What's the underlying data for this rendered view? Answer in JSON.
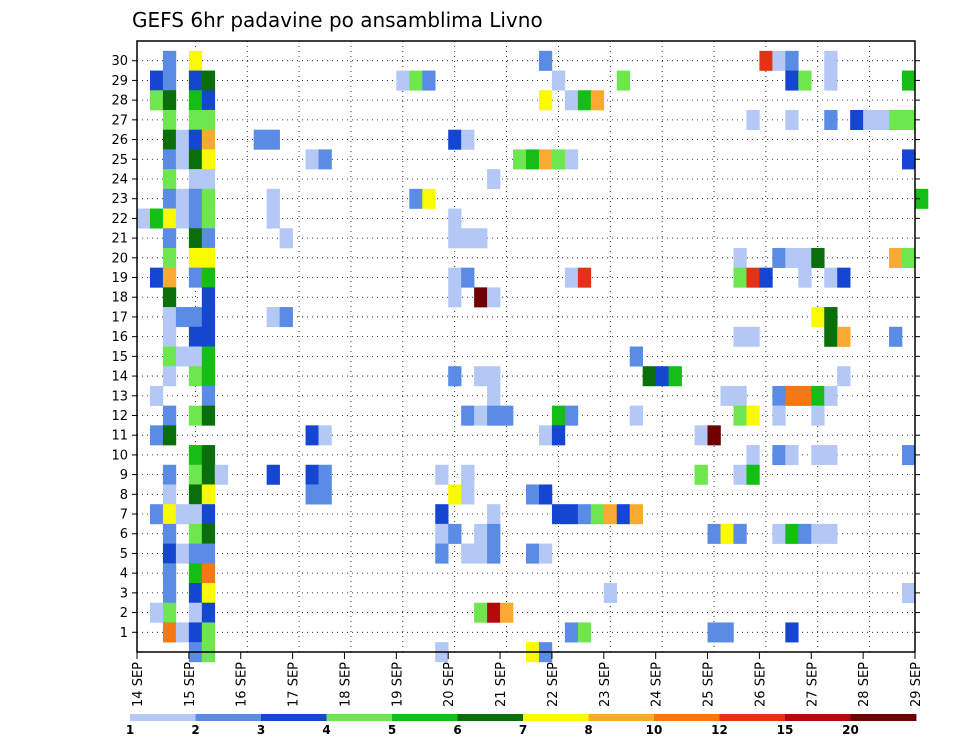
{
  "chart_data": {
    "type": "heatmap",
    "title": "GEFS 6hr padavine po ansamblima Livno",
    "y_ticks": [
      "1",
      "2",
      "3",
      "4",
      "5",
      "6",
      "7",
      "8",
      "9",
      "10",
      "11",
      "12",
      "13",
      "14",
      "15",
      "16",
      "17",
      "18",
      "19",
      "20",
      "21",
      "22",
      "23",
      "24",
      "25",
      "26",
      "27",
      "28",
      "29",
      "30"
    ],
    "x_ticks": [
      "14 SEP",
      "15 SEP",
      "16 SEP",
      "17 SEP",
      "18 SEP",
      "19 SEP",
      "20 SEP",
      "21 SEP",
      "22 SEP",
      "23 SEP",
      "24 SEP",
      "25 SEP",
      "26 SEP",
      "27 SEP",
      "28 SEP",
      "29 SEP"
    ],
    "grid": "dotted",
    "colorbar": {
      "labels": [
        "1",
        "2",
        "3",
        "4",
        "5",
        "6",
        "7",
        "8",
        "10",
        "12",
        "15",
        "20"
      ],
      "colors": [
        "#b4c8f5",
        "#5a8ce6",
        "#1446d2",
        "#6ee650",
        "#14be14",
        "#0a6e0a",
        "#fafa00",
        "#faaa32",
        "#f57814",
        "#e63214",
        "#b40a0a",
        "#6e0000"
      ]
    },
    "cells": [
      [
        30,
        2,
        1
      ],
      [
        30,
        4,
        6
      ],
      [
        30,
        31,
        1
      ],
      [
        30,
        48,
        9
      ],
      [
        30,
        49,
        0
      ],
      [
        30,
        50,
        1
      ],
      [
        30,
        53,
        0
      ],
      [
        29,
        1,
        2
      ],
      [
        29,
        2,
        1
      ],
      [
        29,
        4,
        2
      ],
      [
        29,
        5,
        5
      ],
      [
        29,
        20,
        0
      ],
      [
        29,
        21,
        3
      ],
      [
        29,
        22,
        1
      ],
      [
        29,
        32,
        0
      ],
      [
        29,
        37,
        3
      ],
      [
        29,
        50,
        2
      ],
      [
        29,
        51,
        3
      ],
      [
        29,
        53,
        0
      ],
      [
        29,
        59,
        4
      ],
      [
        28,
        1,
        3
      ],
      [
        28,
        2,
        5
      ],
      [
        28,
        4,
        4
      ],
      [
        28,
        5,
        2
      ],
      [
        28,
        31,
        6
      ],
      [
        28,
        33,
        0
      ],
      [
        28,
        34,
        4
      ],
      [
        28,
        35,
        7
      ],
      [
        27,
        2,
        3
      ],
      [
        27,
        4,
        3
      ],
      [
        27,
        5,
        3
      ],
      [
        27,
        47,
        0
      ],
      [
        27,
        50,
        0
      ],
      [
        27,
        53,
        1
      ],
      [
        27,
        55,
        2
      ],
      [
        27,
        56,
        0
      ],
      [
        27,
        57,
        0
      ],
      [
        27,
        58,
        3
      ],
      [
        27,
        59,
        3
      ],
      [
        26,
        2,
        5
      ],
      [
        26,
        3,
        0
      ],
      [
        26,
        4,
        2
      ],
      [
        26,
        5,
        7
      ],
      [
        26,
        9,
        1
      ],
      [
        26,
        10,
        1
      ],
      [
        26,
        24,
        2
      ],
      [
        26,
        25,
        0
      ],
      [
        25,
        2,
        1
      ],
      [
        25,
        3,
        0
      ],
      [
        25,
        4,
        5
      ],
      [
        25,
        5,
        6
      ],
      [
        25,
        13,
        0
      ],
      [
        25,
        14,
        1
      ],
      [
        25,
        29,
        3
      ],
      [
        25,
        30,
        4
      ],
      [
        25,
        31,
        7
      ],
      [
        25,
        32,
        3
      ],
      [
        25,
        33,
        0
      ],
      [
        25,
        59,
        2
      ],
      [
        24,
        2,
        3
      ],
      [
        24,
        4,
        0
      ],
      [
        24,
        5,
        0
      ],
      [
        24,
        27,
        0
      ],
      [
        23,
        2,
        1
      ],
      [
        23,
        3,
        0
      ],
      [
        23,
        4,
        1
      ],
      [
        23,
        5,
        3
      ],
      [
        23,
        10,
        0
      ],
      [
        23,
        21,
        1
      ],
      [
        23,
        22,
        6
      ],
      [
        23,
        60,
        4
      ],
      [
        22,
        0,
        0
      ],
      [
        22,
        1,
        4
      ],
      [
        22,
        2,
        6
      ],
      [
        22,
        3,
        0
      ],
      [
        22,
        4,
        1
      ],
      [
        22,
        5,
        3
      ],
      [
        22,
        10,
        0
      ],
      [
        22,
        24,
        0
      ],
      [
        21,
        2,
        1
      ],
      [
        21,
        4,
        5
      ],
      [
        21,
        5,
        1
      ],
      [
        21,
        11,
        0
      ],
      [
        21,
        24,
        0
      ],
      [
        21,
        25,
        0
      ],
      [
        21,
        26,
        0
      ],
      [
        20,
        2,
        3
      ],
      [
        20,
        4,
        6
      ],
      [
        20,
        5,
        6
      ],
      [
        20,
        46,
        0
      ],
      [
        20,
        49,
        1
      ],
      [
        20,
        50,
        0
      ],
      [
        20,
        51,
        0
      ],
      [
        20,
        52,
        5
      ],
      [
        20,
        58,
        7
      ],
      [
        20,
        59,
        3
      ],
      [
        19,
        1,
        2
      ],
      [
        19,
        2,
        7
      ],
      [
        19,
        4,
        1
      ],
      [
        19,
        5,
        4
      ],
      [
        19,
        24,
        0
      ],
      [
        19,
        25,
        1
      ],
      [
        19,
        33,
        0
      ],
      [
        19,
        34,
        9
      ],
      [
        19,
        46,
        3
      ],
      [
        19,
        47,
        9
      ],
      [
        19,
        48,
        2
      ],
      [
        19,
        51,
        0
      ],
      [
        19,
        53,
        0
      ],
      [
        19,
        54,
        2
      ],
      [
        18,
        2,
        5
      ],
      [
        18,
        5,
        2
      ],
      [
        18,
        24,
        0
      ],
      [
        18,
        26,
        11
      ],
      [
        18,
        27,
        0
      ],
      [
        17,
        2,
        0
      ],
      [
        17,
        3,
        1
      ],
      [
        17,
        4,
        1
      ],
      [
        17,
        5,
        2
      ],
      [
        17,
        10,
        0
      ],
      [
        17,
        11,
        1
      ],
      [
        17,
        52,
        6
      ],
      [
        17,
        53,
        5
      ],
      [
        16,
        2,
        0
      ],
      [
        16,
        4,
        2
      ],
      [
        16,
        5,
        2
      ],
      [
        16,
        46,
        0
      ],
      [
        16,
        47,
        0
      ],
      [
        16,
        53,
        5
      ],
      [
        16,
        54,
        7
      ],
      [
        16,
        58,
        1
      ],
      [
        15,
        2,
        3
      ],
      [
        15,
        3,
        0
      ],
      [
        15,
        4,
        0
      ],
      [
        15,
        5,
        4
      ],
      [
        15,
        38,
        1
      ],
      [
        14,
        2,
        0
      ],
      [
        14,
        4,
        3
      ],
      [
        14,
        5,
        4
      ],
      [
        14,
        24,
        1
      ],
      [
        14,
        26,
        0
      ],
      [
        14,
        27,
        0
      ],
      [
        14,
        39,
        5
      ],
      [
        14,
        40,
        2
      ],
      [
        14,
        41,
        4
      ],
      [
        14,
        54,
        0
      ],
      [
        13,
        1,
        0
      ],
      [
        13,
        5,
        1
      ],
      [
        13,
        27,
        0
      ],
      [
        13,
        45,
        0
      ],
      [
        13,
        46,
        0
      ],
      [
        13,
        49,
        1
      ],
      [
        13,
        50,
        8
      ],
      [
        13,
        51,
        8
      ],
      [
        13,
        52,
        4
      ],
      [
        13,
        53,
        0
      ],
      [
        12,
        2,
        1
      ],
      [
        12,
        4,
        3
      ],
      [
        12,
        5,
        5
      ],
      [
        12,
        25,
        1
      ],
      [
        12,
        26,
        0
      ],
      [
        12,
        27,
        1
      ],
      [
        12,
        28,
        1
      ],
      [
        12,
        32,
        4
      ],
      [
        12,
        33,
        1
      ],
      [
        12,
        38,
        0
      ],
      [
        12,
        46,
        3
      ],
      [
        12,
        47,
        6
      ],
      [
        12,
        49,
        0
      ],
      [
        12,
        52,
        0
      ],
      [
        11,
        1,
        1
      ],
      [
        11,
        2,
        5
      ],
      [
        11,
        13,
        2
      ],
      [
        11,
        14,
        0
      ],
      [
        11,
        31,
        0
      ],
      [
        11,
        32,
        2
      ],
      [
        11,
        43,
        0
      ],
      [
        11,
        44,
        11
      ],
      [
        10,
        4,
        4
      ],
      [
        10,
        5,
        5
      ],
      [
        10,
        47,
        0
      ],
      [
        10,
        49,
        1
      ],
      [
        10,
        50,
        0
      ],
      [
        10,
        52,
        0
      ],
      [
        10,
        53,
        0
      ],
      [
        10,
        59,
        1
      ],
      [
        9,
        2,
        1
      ],
      [
        9,
        4,
        3
      ],
      [
        9,
        5,
        5
      ],
      [
        9,
        6,
        0
      ],
      [
        9,
        10,
        2
      ],
      [
        9,
        13,
        2
      ],
      [
        9,
        14,
        1
      ],
      [
        9,
        23,
        0
      ],
      [
        9,
        25,
        0
      ],
      [
        9,
        43,
        3
      ],
      [
        9,
        46,
        0
      ],
      [
        9,
        47,
        4
      ],
      [
        8,
        2,
        0
      ],
      [
        8,
        4,
        5
      ],
      [
        8,
        5,
        6
      ],
      [
        8,
        13,
        1
      ],
      [
        8,
        14,
        1
      ],
      [
        8,
        24,
        6
      ],
      [
        8,
        25,
        0
      ],
      [
        8,
        30,
        1
      ],
      [
        8,
        31,
        2
      ],
      [
        7,
        1,
        1
      ],
      [
        7,
        2,
        6
      ],
      [
        7,
        3,
        0
      ],
      [
        7,
        4,
        0
      ],
      [
        7,
        5,
        2
      ],
      [
        7,
        23,
        2
      ],
      [
        7,
        27,
        0
      ],
      [
        7,
        32,
        2
      ],
      [
        7,
        33,
        2
      ],
      [
        7,
        34,
        1
      ],
      [
        7,
        35,
        3
      ],
      [
        7,
        36,
        7
      ],
      [
        7,
        37,
        2
      ],
      [
        7,
        38,
        7
      ],
      [
        6,
        2,
        1
      ],
      [
        6,
        4,
        3
      ],
      [
        6,
        5,
        5
      ],
      [
        6,
        23,
        0
      ],
      [
        6,
        24,
        1
      ],
      [
        6,
        26,
        0
      ],
      [
        6,
        27,
        1
      ],
      [
        6,
        44,
        1
      ],
      [
        6,
        45,
        6
      ],
      [
        6,
        46,
        1
      ],
      [
        6,
        49,
        0
      ],
      [
        6,
        50,
        4
      ],
      [
        6,
        51,
        1
      ],
      [
        6,
        52,
        0
      ],
      [
        6,
        53,
        0
      ],
      [
        5,
        2,
        2
      ],
      [
        5,
        3,
        0
      ],
      [
        5,
        4,
        1
      ],
      [
        5,
        5,
        1
      ],
      [
        5,
        23,
        1
      ],
      [
        5,
        25,
        0
      ],
      [
        5,
        26,
        0
      ],
      [
        5,
        27,
        1
      ],
      [
        5,
        30,
        1
      ],
      [
        5,
        31,
        0
      ],
      [
        4,
        2,
        1
      ],
      [
        4,
        4,
        4
      ],
      [
        4,
        5,
        8
      ],
      [
        3,
        2,
        1
      ],
      [
        3,
        4,
        2
      ],
      [
        3,
        5,
        6
      ],
      [
        3,
        36,
        0
      ],
      [
        3,
        59,
        0
      ],
      [
        2,
        1,
        0
      ],
      [
        2,
        2,
        3
      ],
      [
        2,
        4,
        0
      ],
      [
        2,
        5,
        2
      ],
      [
        2,
        26,
        3
      ],
      [
        2,
        27,
        10
      ],
      [
        2,
        28,
        7
      ],
      [
        1,
        2,
        8
      ],
      [
        1,
        3,
        0
      ],
      [
        1,
        4,
        2
      ],
      [
        1,
        5,
        3
      ],
      [
        1,
        33,
        1
      ],
      [
        1,
        34,
        3
      ],
      [
        1,
        44,
        1
      ],
      [
        1,
        45,
        1
      ],
      [
        1,
        50,
        2
      ],
      [
        0,
        4,
        1
      ],
      [
        0,
        5,
        3
      ],
      [
        0,
        23,
        0
      ],
      [
        0,
        30,
        6
      ],
      [
        0,
        31,
        1
      ]
    ]
  }
}
